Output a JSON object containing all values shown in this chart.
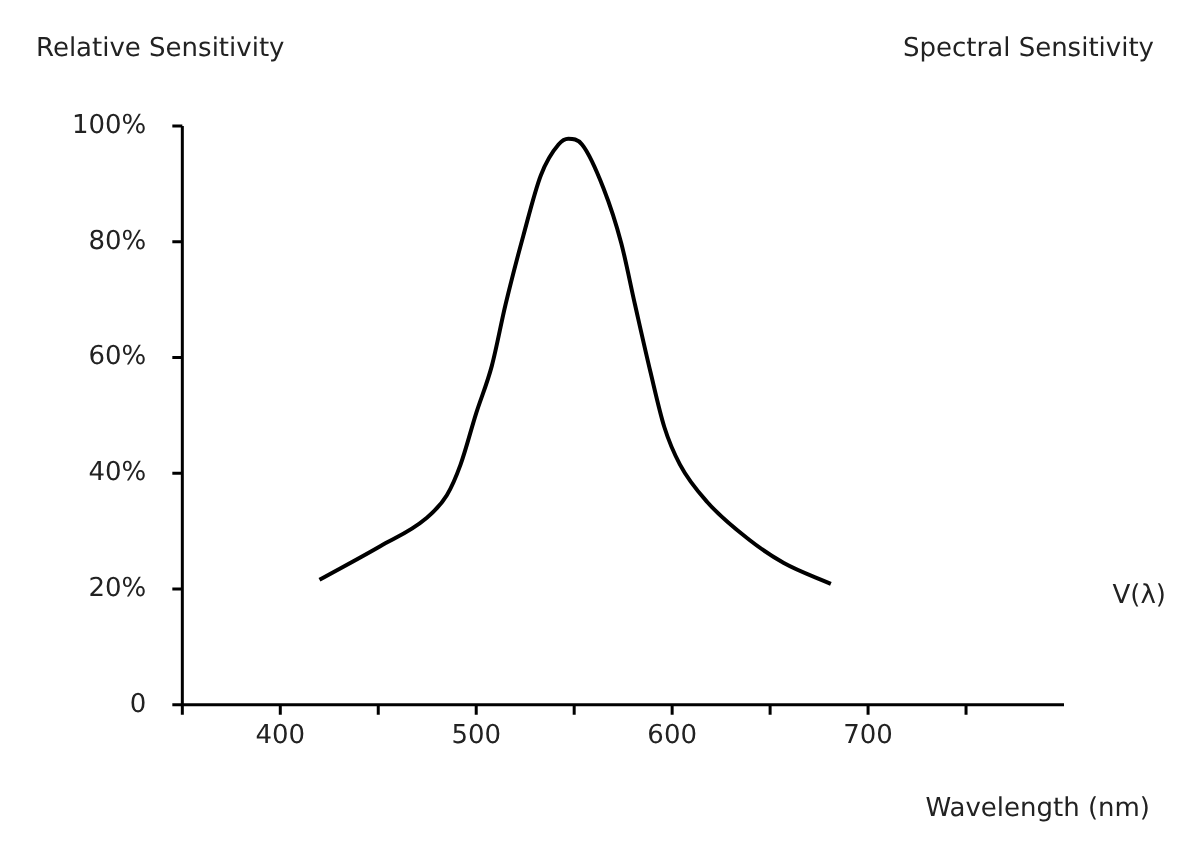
{
  "chart_data": {
    "type": "line",
    "title": "Spectral Sensitivity",
    "ylabel": "Relative Sensitivity",
    "xlabel": "Wavelength (nm)",
    "xlim": [
      350,
      800
    ],
    "xticks": [
      400,
      {
        "value": 450,
        "label": null
      },
      500,
      {
        "value": 550,
        "label": null
      },
      600,
      {
        "value": 650,
        "label": null
      },
      700,
      {
        "value": 750,
        "label": null
      }
    ],
    "ylim": [
      0,
      100
    ],
    "yticks": [
      {
        "value": 0,
        "label": "0"
      },
      {
        "value": 20,
        "label": "20%"
      },
      {
        "value": 40,
        "label": "40%"
      },
      {
        "value": 60,
        "label": "60%"
      },
      {
        "value": 80,
        "label": "80%"
      },
      {
        "value": 100,
        "label": "100%"
      }
    ],
    "grid": false,
    "legend": false,
    "marker": "none",
    "line_style": "solid",
    "series": [
      {
        "name": "V(λ)",
        "color": "#000000",
        "x": [
          420,
          451,
          474,
          485,
          492,
          500,
          508,
          515,
          524,
          533,
          542,
          547,
          554,
          565,
          574,
          581,
          589,
          596,
          604,
          618,
          639,
          657,
          681
        ],
        "values": [
          21.6,
          27.4,
          32.1,
          36.2,
          41.5,
          50.4,
          58.6,
          69.2,
          81,
          91.5,
          96.8,
          97.8,
          96.8,
          89.2,
          79.8,
          69.2,
          57.4,
          48,
          41.5,
          35,
          28.6,
          24.5,
          20.9
        ]
      }
    ]
  }
}
